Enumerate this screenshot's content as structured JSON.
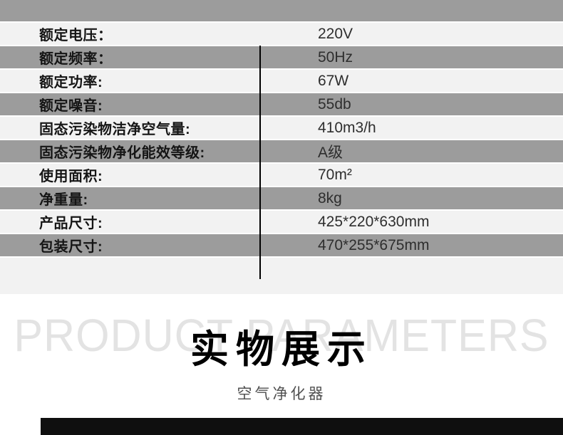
{
  "colors": {
    "section_bg": "#f2f2f2",
    "row_gray": "#9c9c9c",
    "row_light": "#f2f2f2",
    "column_divider": "#000000",
    "bottom_bar": "#0f0f0f",
    "watermark": "#e3e3e3"
  },
  "spec_table": {
    "rows": [
      {
        "label": "额定电压：",
        "value": "220V"
      },
      {
        "label": "额定频率：",
        "value": "50Hz"
      },
      {
        "label": "额定功率:",
        "value": "67W"
      },
      {
        "label": "额定噪音:",
        "value": "55db"
      },
      {
        "label": "固态污染物洁净空气量:",
        "value": "410m3/h"
      },
      {
        "label": "固态污染物净化能效等级:",
        "value": "A级"
      },
      {
        "label": "使用面积:",
        "value": "70m²"
      },
      {
        "label": "净重量:",
        "value": "8kg"
      },
      {
        "label": "产品尺寸:",
        "value": "425*220*630mm"
      },
      {
        "label": "包装尺寸:",
        "value": "470*255*675mm"
      }
    ]
  },
  "showcase": {
    "watermark": "PRODUCT PARAMETERS",
    "title": "实物展示",
    "subtitle": "空气净化器"
  }
}
